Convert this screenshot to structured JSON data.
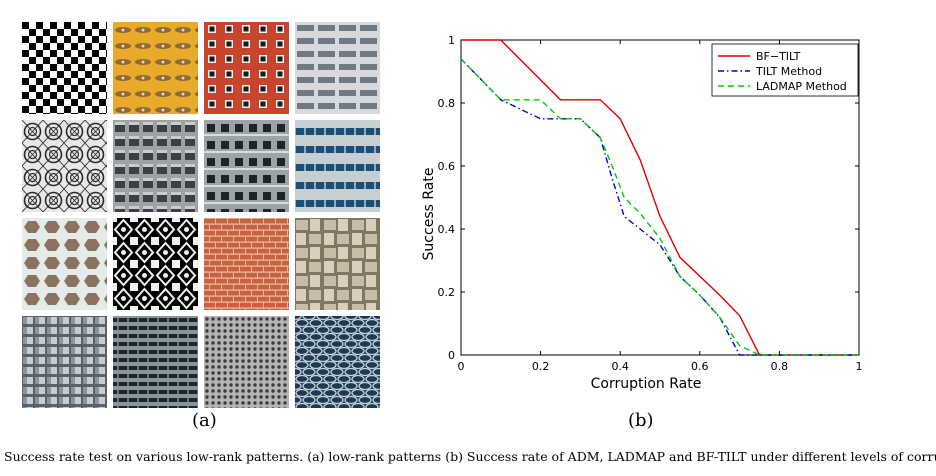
{
  "figure": {
    "panel_a_label": "(a)",
    "panel_b_label": "(b)",
    "caption": "Success rate test on various low-rank patterns. (a) low-rank patterns (b) Success rate of ADM, LADMAP and BF-TILT under different levels of corruption."
  },
  "patterns": [
    {
      "kind": "checkerboard",
      "colors": [
        "#000000",
        "#ffffff"
      ]
    },
    {
      "kind": "yellow-leaves",
      "colors": [
        "#e9aa2a",
        "#8a6a38"
      ]
    },
    {
      "kind": "red-facade",
      "colors": [
        "#c8442e",
        "#1a1a1a"
      ]
    },
    {
      "kind": "white-building",
      "colors": [
        "#d7d9da",
        "#6f7a84"
      ]
    },
    {
      "kind": "lace",
      "colors": [
        "#e8e8e8",
        "#2a2a2a"
      ]
    },
    {
      "kind": "concrete-grid",
      "colors": [
        "#9ea2a6",
        "#3c3f44"
      ]
    },
    {
      "kind": "apartment",
      "colors": [
        "#9ca4a8",
        "#1e2429"
      ]
    },
    {
      "kind": "blue-windows",
      "colors": [
        "#c7cfd3",
        "#1c4f76"
      ]
    },
    {
      "kind": "hex-tiles",
      "colors": [
        "#e4ebe9",
        "#8a7460"
      ]
    },
    {
      "kind": "black-ornament",
      "colors": [
        "#000000",
        "#f0f0f0"
      ]
    },
    {
      "kind": "bricks",
      "colors": [
        "#c8613e",
        "#e7b49f"
      ]
    },
    {
      "kind": "weave",
      "colors": [
        "#c6bda8",
        "#7f7663"
      ]
    },
    {
      "kind": "glass-tower",
      "colors": [
        "#5b6167",
        "#c6ccd1"
      ]
    },
    {
      "kind": "office-stripes",
      "colors": [
        "#8a9599",
        "#1d2629"
      ]
    },
    {
      "kind": "dot-grid",
      "colors": [
        "#b4b4b4",
        "#3a3a3a"
      ]
    },
    {
      "kind": "blue-lattice",
      "colors": [
        "#1e3b55",
        "#c6d2da"
      ]
    }
  ],
  "chart_data": {
    "type": "line",
    "xlabel": "Corruption Rate",
    "ylabel": "Success Rate",
    "xlim": [
      0,
      1
    ],
    "ylim": [
      0,
      1
    ],
    "x_ticks": [
      "0",
      "0.2",
      "0.4",
      "0.6",
      "0.8",
      "1"
    ],
    "y_ticks": [
      "0",
      "0.2",
      "0.4",
      "0.6",
      "0.8",
      "1"
    ],
    "grid": false,
    "legend_position": "top-right",
    "series": [
      {
        "name": "BF−TILT",
        "color": "#dd0000",
        "dash": "solid",
        "x": [
          0,
          0.1,
          0.25,
          0.35,
          0.4,
          0.45,
          0.5,
          0.55,
          0.6,
          0.65,
          0.7,
          0.75,
          0.8,
          1.0
        ],
        "y": [
          1,
          1,
          0.81,
          0.81,
          0.75,
          0.62,
          0.44,
          0.31,
          0.25,
          0.19,
          0.125,
          0,
          0,
          0
        ]
      },
      {
        "name": "TILT Method",
        "color": "#0000dd",
        "dash": "dashdot",
        "x": [
          0,
          0.1,
          0.2,
          0.3,
          0.35,
          0.38,
          0.41,
          0.45,
          0.5,
          0.55,
          0.6,
          0.65,
          0.7,
          0.75,
          0.8,
          1.0
        ],
        "y": [
          0.94,
          0.81,
          0.75,
          0.75,
          0.69,
          0.56,
          0.44,
          0.4,
          0.35,
          0.25,
          0.19,
          0.12,
          0,
          0,
          0,
          0
        ]
      },
      {
        "name": "LADMAP Method",
        "color": "#00cc00",
        "dash": "dashed",
        "x": [
          0,
          0.1,
          0.2,
          0.25,
          0.3,
          0.35,
          0.38,
          0.41,
          0.45,
          0.5,
          0.55,
          0.6,
          0.65,
          0.7,
          0.75,
          0.8,
          1.0
        ],
        "y": [
          0.94,
          0.81,
          0.81,
          0.75,
          0.75,
          0.69,
          0.6,
          0.5,
          0.45,
          0.37,
          0.25,
          0.19,
          0.12,
          0.03,
          0,
          0,
          0
        ]
      }
    ]
  }
}
